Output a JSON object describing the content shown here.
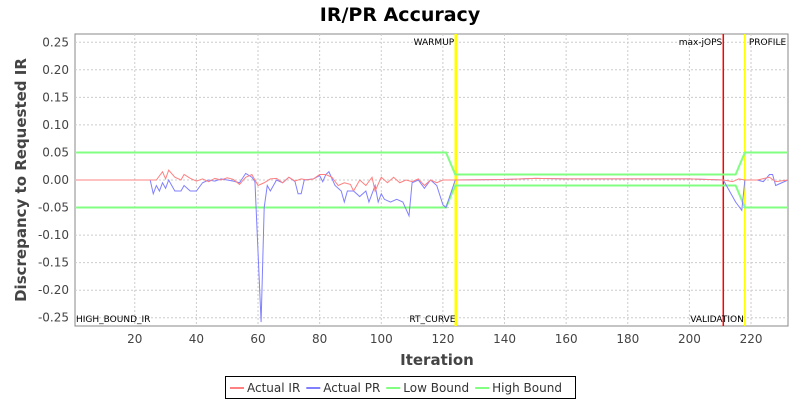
{
  "chart_data": {
    "type": "line",
    "title": "IR/PR Accuracy",
    "xlabel": "Iteration",
    "ylabel": "Discrepancy to Requested IR",
    "xlim": [
      0.6,
      232
    ],
    "ylim": [
      -0.265,
      0.265
    ],
    "xticks": [
      20,
      40,
      60,
      80,
      100,
      120,
      140,
      160,
      180,
      200,
      220
    ],
    "yticks": [
      "0.25",
      "0.20",
      "0.15",
      "0.10",
      "0.05",
      "0.00",
      "-0.05",
      "-0.10",
      "-0.15",
      "-0.20",
      "-0.25"
    ],
    "grid": true,
    "legend_placement": "bottom",
    "markers": [
      {
        "x": 124,
        "label": "WARMUP",
        "color": "#ffff00",
        "label_pos": "top"
      },
      {
        "x": 124.4,
        "label": "RT_CURVE",
        "color": "#ffff00",
        "label_pos": "bottom"
      },
      {
        "x": 211,
        "label": "max-jOPS",
        "color": "#ff0000",
        "label_pos": "top"
      },
      {
        "x": 218,
        "label": "VALIDATION",
        "color": "#ffff00",
        "label_pos": "bottom"
      },
      {
        "x": 218,
        "label": "PROFILE",
        "color": "#ffff00",
        "label_pos": "top-right"
      }
    ],
    "corner_label": "HIGH_BOUND_IR",
    "series": [
      {
        "name": "Actual IR",
        "color": "#ff8080",
        "points": [
          [
            1,
            0
          ],
          [
            25,
            0
          ],
          [
            27,
            0
          ],
          [
            29,
            0.015
          ],
          [
            30,
            0.002
          ],
          [
            31,
            0.018
          ],
          [
            33,
            0.005
          ],
          [
            35,
            0
          ],
          [
            36,
            0.01
          ],
          [
            38,
            0.003
          ],
          [
            40,
            -0.002
          ],
          [
            42,
            0.002
          ],
          [
            44,
            -0.003
          ],
          [
            46,
            0.003
          ],
          [
            48,
            0
          ],
          [
            50,
            0.004
          ],
          [
            52,
            0.001
          ],
          [
            54,
            -0.008
          ],
          [
            56,
            0.005
          ],
          [
            58,
            0.01
          ],
          [
            60,
            -0.01
          ],
          [
            62,
            -0.005
          ],
          [
            64,
            0.002
          ],
          [
            66,
            0.003
          ],
          [
            68,
            -0.005
          ],
          [
            70,
            0.005
          ],
          [
            72,
            -0.002
          ],
          [
            74,
            0.002
          ],
          [
            76,
            0
          ],
          [
            78,
            0.002
          ],
          [
            80,
            0.01
          ],
          [
            82,
            0.01
          ],
          [
            84,
            0.005
          ],
          [
            86,
            -0.01
          ],
          [
            88,
            -0.005
          ],
          [
            90,
            -0.008
          ],
          [
            91,
            -0.02
          ],
          [
            93,
            0
          ],
          [
            95,
            -0.01
          ],
          [
            97,
            0.005
          ],
          [
            98,
            -0.02
          ],
          [
            100,
            0.005
          ],
          [
            102,
            -0.005
          ],
          [
            104,
            0.005
          ],
          [
            106,
            -0.005
          ],
          [
            108,
            0
          ],
          [
            110,
            -0.003
          ],
          [
            112,
            0.002
          ],
          [
            114,
            -0.01
          ],
          [
            116,
            0
          ],
          [
            118,
            -0.005
          ],
          [
            120,
            0
          ],
          [
            124,
            0
          ],
          [
            140,
            0.001
          ],
          [
            150,
            0.003
          ],
          [
            160,
            0.002
          ],
          [
            170,
            0.002
          ],
          [
            180,
            0.002
          ],
          [
            190,
            0.002
          ],
          [
            200,
            0.002
          ],
          [
            211,
            0
          ],
          [
            214,
            -0.003
          ],
          [
            216,
            0.002
          ],
          [
            218,
            0
          ],
          [
            222,
            0
          ],
          [
            226,
            0.005
          ],
          [
            228,
            -0.003
          ],
          [
            232,
            0
          ]
        ]
      },
      {
        "name": "Actual PR",
        "color": "#8080ff",
        "points": [
          [
            1,
            0
          ],
          [
            25,
            0
          ],
          [
            26,
            -0.025
          ],
          [
            27,
            -0.01
          ],
          [
            28,
            -0.02
          ],
          [
            29,
            -0.005
          ],
          [
            30,
            -0.015
          ],
          [
            31,
            0
          ],
          [
            33,
            -0.02
          ],
          [
            35,
            -0.02
          ],
          [
            36,
            -0.01
          ],
          [
            38,
            -0.02
          ],
          [
            40,
            -0.02
          ],
          [
            42,
            -0.005
          ],
          [
            44,
            0
          ],
          [
            46,
            -0.002
          ],
          [
            48,
            0.002
          ],
          [
            50,
            0
          ],
          [
            52,
            -0.002
          ],
          [
            54,
            -0.005
          ],
          [
            56,
            0.012
          ],
          [
            58,
            0.005
          ],
          [
            59,
            -0.003
          ],
          [
            61,
            -0.258
          ],
          [
            62,
            -0.05
          ],
          [
            63,
            -0.01
          ],
          [
            64,
            -0.02
          ],
          [
            66,
            0
          ],
          [
            68,
            -0.005
          ],
          [
            70,
            0.005
          ],
          [
            72,
            -0.003
          ],
          [
            73,
            -0.025
          ],
          [
            74,
            -0.025
          ],
          [
            75,
            0
          ],
          [
            78,
            0.002
          ],
          [
            80,
            0.008
          ],
          [
            81,
            -0.003
          ],
          [
            82,
            0.01
          ],
          [
            83,
            0.015
          ],
          [
            85,
            -0.01
          ],
          [
            87,
            -0.02
          ],
          [
            88,
            -0.04
          ],
          [
            89,
            -0.02
          ],
          [
            91,
            -0.02
          ],
          [
            93,
            -0.03
          ],
          [
            95,
            -0.02
          ],
          [
            96,
            -0.04
          ],
          [
            98,
            -0.01
          ],
          [
            99,
            -0.04
          ],
          [
            100,
            -0.025
          ],
          [
            101,
            -0.035
          ],
          [
            103,
            -0.04
          ],
          [
            105,
            -0.035
          ],
          [
            107,
            -0.04
          ],
          [
            109,
            -0.065
          ],
          [
            110,
            -0.005
          ],
          [
            112,
            0
          ],
          [
            114,
            -0.015
          ],
          [
            116,
            0
          ],
          [
            118,
            -0.01
          ],
          [
            120,
            -0.045
          ],
          [
            121,
            -0.05
          ],
          [
            124,
            0
          ],
          [
            140,
            0.001
          ],
          [
            150,
            0.003
          ],
          [
            160,
            0.002
          ],
          [
            170,
            0.002
          ],
          [
            180,
            0.002
          ],
          [
            190,
            0.002
          ],
          [
            200,
            0.002
          ],
          [
            211,
            0
          ],
          [
            213,
            -0.02
          ],
          [
            215,
            -0.04
          ],
          [
            217,
            -0.055
          ],
          [
            218,
            0
          ],
          [
            222,
            0
          ],
          [
            224,
            -0.003
          ],
          [
            226,
            0.01
          ],
          [
            227,
            0.01
          ],
          [
            228,
            -0.01
          ],
          [
            232,
            0
          ]
        ]
      },
      {
        "name": "Low Bound",
        "color": "#80ff80",
        "points": [
          [
            1,
            -0.05
          ],
          [
            121,
            -0.05
          ],
          [
            124,
            -0.01
          ],
          [
            215,
            -0.01
          ],
          [
            218,
            -0.05
          ],
          [
            232,
            -0.05
          ]
        ]
      },
      {
        "name": "High Bound",
        "color": "#80ff80",
        "points": [
          [
            1,
            0.05
          ],
          [
            121,
            0.05
          ],
          [
            124,
            0.01
          ],
          [
            215,
            0.01
          ],
          [
            218,
            0.05
          ],
          [
            232,
            0.05
          ]
        ]
      }
    ]
  }
}
